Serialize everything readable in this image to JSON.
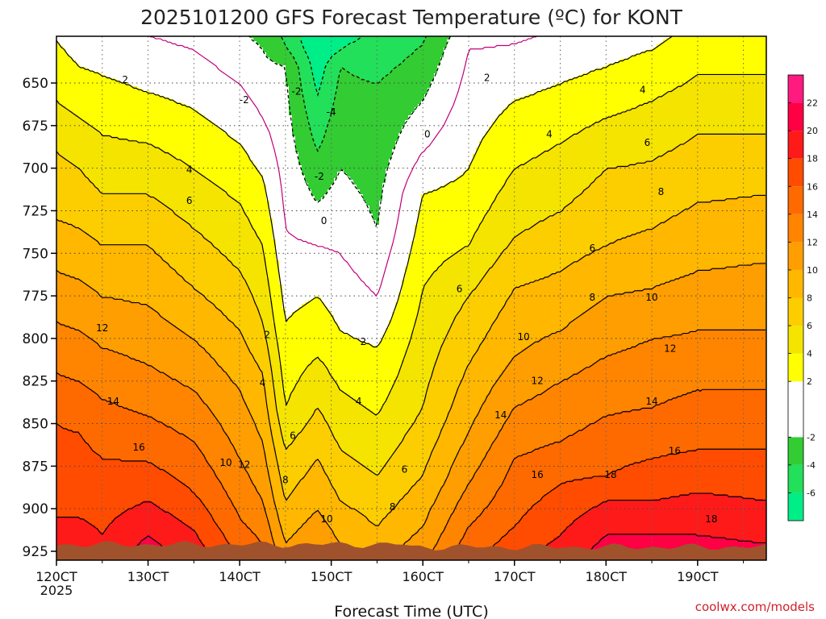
{
  "title": "2025101200 GFS Forecast Temperature (ºC) for KONT",
  "credit": "coolwx.com/models",
  "chart_data": {
    "type": "contour",
    "xlabel": "Forecast Time (UTC)",
    "ylabel": "",
    "x_unit": "day of October 2025",
    "x_range": [
      12,
      19.75
    ],
    "y_range": [
      925,
      625
    ],
    "y_scale": "pressure (hPa), decreasing upward",
    "y_ticks": [
      650,
      675,
      700,
      725,
      750,
      775,
      800,
      825,
      850,
      875,
      900,
      925
    ],
    "x_ticks": [
      {
        "value": 12,
        "label": "120CT",
        "sublabel": "2025"
      },
      {
        "value": 13,
        "label": "130CT"
      },
      {
        "value": 14,
        "label": "140CT"
      },
      {
        "value": 15,
        "label": "150CT"
      },
      {
        "value": 16,
        "label": "160CT"
      },
      {
        "value": 17,
        "label": "170CT"
      },
      {
        "value": 18,
        "label": "180CT"
      },
      {
        "value": 19,
        "label": "190CT"
      }
    ],
    "grid": true,
    "ground_color": "#a0522d",
    "colorbar": {
      "position": "right",
      "min": -8,
      "max": 24,
      "step": 2,
      "labels": [
        "22",
        "20",
        "18",
        "16",
        "14",
        "12",
        "10",
        "8",
        "6",
        "4",
        "2",
        "-2",
        "-4",
        "-6"
      ],
      "colors": [
        {
          "range": [
            -8,
            -6
          ],
          "color": "#00ee88"
        },
        {
          "range": [
            -6,
            -4
          ],
          "color": "#22e05a"
        },
        {
          "range": [
            -4,
            -2
          ],
          "color": "#33cc33"
        },
        {
          "range": [
            -2,
            2
          ],
          "color": "#ffffff"
        },
        {
          "range": [
            2,
            4
          ],
          "color": "#ffff00"
        },
        {
          "range": [
            4,
            6
          ],
          "color": "#f4e400"
        },
        {
          "range": [
            6,
            8
          ],
          "color": "#fcce00"
        },
        {
          "range": [
            8,
            10
          ],
          "color": "#ffb700"
        },
        {
          "range": [
            10,
            12
          ],
          "color": "#ff9e00"
        },
        {
          "range": [
            12,
            14
          ],
          "color": "#ff8500"
        },
        {
          "range": [
            14,
            16
          ],
          "color": "#ff6a00"
        },
        {
          "range": [
            16,
            18
          ],
          "color": "#ff4c00"
        },
        {
          "range": [
            18,
            20
          ],
          "color": "#ff1a1a"
        },
        {
          "range": [
            20,
            22
          ],
          "color": "#ff0044"
        },
        {
          "range": [
            22,
            24
          ],
          "color": "#ff1a80"
        }
      ]
    },
    "profiles": [
      {
        "day": 12.0,
        "t_levels": [
          [
            2,
            625
          ],
          [
            4,
            660
          ],
          [
            6,
            690
          ],
          [
            8,
            730
          ],
          [
            10,
            760
          ],
          [
            12,
            790
          ],
          [
            14,
            820
          ],
          [
            16,
            850
          ],
          [
            18,
            905
          ]
        ]
      },
      {
        "day": 12.25,
        "t_levels": [
          [
            2,
            640
          ],
          [
            4,
            670
          ],
          [
            6,
            700
          ],
          [
            8,
            735
          ],
          [
            10,
            765
          ],
          [
            12,
            795
          ],
          [
            14,
            825
          ],
          [
            16,
            855
          ],
          [
            18,
            905
          ]
        ]
      },
      {
        "day": 12.5,
        "t_levels": [
          [
            2,
            645
          ],
          [
            4,
            680
          ],
          [
            6,
            715
          ],
          [
            8,
            745
          ],
          [
            10,
            775
          ],
          [
            12,
            805
          ],
          [
            14,
            835
          ],
          [
            16,
            870
          ],
          [
            18,
            915
          ]
        ]
      },
      {
        "day": 13.0,
        "t_levels": [
          [
            2,
            655
          ],
          [
            4,
            685
          ],
          [
            6,
            715
          ],
          [
            8,
            745
          ],
          [
            10,
            780
          ],
          [
            12,
            815
          ],
          [
            14,
            845
          ],
          [
            16,
            872
          ],
          [
            18,
            895
          ],
          [
            20,
            915
          ]
        ]
      },
      {
        "day": 13.5,
        "t_levels": [
          [
            0,
            630
          ],
          [
            2,
            665
          ],
          [
            4,
            700
          ],
          [
            6,
            735
          ],
          [
            8,
            770
          ],
          [
            10,
            800
          ],
          [
            12,
            830
          ],
          [
            14,
            860
          ],
          [
            16,
            890
          ],
          [
            18,
            912
          ]
        ]
      },
      {
        "day": 14.0,
        "t_levels": [
          [
            0,
            650
          ],
          [
            2,
            685
          ],
          [
            4,
            720
          ],
          [
            6,
            760
          ],
          [
            8,
            795
          ],
          [
            10,
            830
          ],
          [
            12,
            870
          ],
          [
            14,
            905
          ]
        ]
      },
      {
        "day": 14.25,
        "t_levels": [
          [
            -2,
            630
          ],
          [
            0,
            670
          ],
          [
            2,
            705
          ],
          [
            4,
            745
          ],
          [
            6,
            790
          ],
          [
            8,
            820
          ],
          [
            10,
            860
          ],
          [
            12,
            895
          ]
        ]
      },
      {
        "day": 14.5,
        "t_levels": [
          [
            -4,
            628
          ],
          [
            -2,
            640
          ],
          [
            0,
            735
          ],
          [
            2,
            790
          ],
          [
            4,
            840
          ],
          [
            6,
            865
          ],
          [
            8,
            895
          ],
          [
            10,
            920
          ]
        ]
      },
      {
        "day": 14.85,
        "t_levels": [
          [
            -4,
            690
          ],
          [
            -2,
            720
          ],
          [
            0,
            745
          ],
          [
            2,
            775
          ],
          [
            4,
            810
          ],
          [
            6,
            840
          ],
          [
            8,
            870
          ],
          [
            10,
            900
          ]
        ]
      },
      {
        "day": 15.1,
        "t_levels": [
          [
            -6,
            630
          ],
          [
            -4,
            640
          ],
          [
            -2,
            700
          ],
          [
            0,
            750
          ],
          [
            2,
            795
          ],
          [
            4,
            830
          ],
          [
            6,
            865
          ],
          [
            8,
            895
          ],
          [
            10,
            920
          ]
        ]
      },
      {
        "day": 15.5,
        "t_levels": [
          [
            -4,
            650
          ],
          [
            -2,
            735
          ],
          [
            0,
            775
          ],
          [
            2,
            805
          ],
          [
            4,
            845
          ],
          [
            6,
            880
          ],
          [
            8,
            910
          ]
        ]
      },
      {
        "day": 16.0,
        "t_levels": [
          [
            -2,
            660
          ],
          [
            0,
            690
          ],
          [
            2,
            715
          ],
          [
            4,
            770
          ],
          [
            6,
            840
          ],
          [
            8,
            880
          ],
          [
            10,
            910
          ]
        ]
      },
      {
        "day": 16.5,
        "t_levels": [
          [
            0,
            630
          ],
          [
            2,
            700
          ],
          [
            4,
            745
          ],
          [
            6,
            775
          ],
          [
            8,
            815
          ],
          [
            10,
            855
          ],
          [
            12,
            885
          ]
        ]
      },
      {
        "day": 17.0,
        "t_levels": [
          [
            2,
            660
          ],
          [
            4,
            700
          ],
          [
            6,
            740
          ],
          [
            8,
            770
          ],
          [
            10,
            810
          ],
          [
            12,
            840
          ],
          [
            14,
            870
          ],
          [
            16,
            910
          ]
        ]
      },
      {
        "day": 17.5,
        "t_levels": [
          [
            2,
            650
          ],
          [
            4,
            685
          ],
          [
            6,
            725
          ],
          [
            8,
            760
          ],
          [
            10,
            795
          ],
          [
            12,
            825
          ],
          [
            14,
            860
          ],
          [
            16,
            885
          ],
          [
            18,
            915
          ]
        ]
      },
      {
        "day": 18.0,
        "t_levels": [
          [
            2,
            640
          ],
          [
            4,
            670
          ],
          [
            6,
            700
          ],
          [
            8,
            745
          ],
          [
            10,
            775
          ],
          [
            12,
            810
          ],
          [
            14,
            845
          ],
          [
            16,
            880
          ],
          [
            18,
            895
          ],
          [
            20,
            915
          ]
        ]
      },
      {
        "day": 18.5,
        "t_levels": [
          [
            2,
            630
          ],
          [
            4,
            660
          ],
          [
            6,
            695
          ],
          [
            8,
            735
          ],
          [
            10,
            770
          ],
          [
            12,
            800
          ],
          [
            14,
            840
          ],
          [
            16,
            870
          ],
          [
            18,
            895
          ],
          [
            20,
            915
          ]
        ]
      },
      {
        "day": 19.0,
        "t_levels": [
          [
            4,
            645
          ],
          [
            6,
            680
          ],
          [
            8,
            720
          ],
          [
            10,
            760
          ],
          [
            12,
            795
          ],
          [
            14,
            830
          ],
          [
            16,
            865
          ],
          [
            18,
            890
          ],
          [
            20,
            915
          ]
        ]
      },
      {
        "day": 19.75,
        "t_levels": [
          [
            4,
            645
          ],
          [
            6,
            680
          ],
          [
            8,
            715
          ],
          [
            10,
            755
          ],
          [
            12,
            795
          ],
          [
            14,
            830
          ],
          [
            16,
            865
          ],
          [
            18,
            895
          ]
        ]
      }
    ],
    "contour_labels": [
      {
        "text": "2",
        "day": 12.75,
        "p": 648
      },
      {
        "text": "4",
        "day": 13.45,
        "p": 701
      },
      {
        "text": "6",
        "day": 13.45,
        "p": 719
      },
      {
        "text": "12",
        "day": 12.5,
        "p": 794
      },
      {
        "text": "14",
        "day": 12.62,
        "p": 837
      },
      {
        "text": "16",
        "day": 12.9,
        "p": 864
      },
      {
        "text": "-2",
        "day": 14.05,
        "p": 660
      },
      {
        "text": "-2",
        "day": 14.62,
        "p": 655
      },
      {
        "text": "-4",
        "day": 15.0,
        "p": 667
      },
      {
        "text": "-2",
        "day": 14.87,
        "p": 705
      },
      {
        "text": "0",
        "day": 14.92,
        "p": 731
      },
      {
        "text": "0",
        "day": 16.05,
        "p": 680
      },
      {
        "text": "2",
        "day": 16.7,
        "p": 647
      },
      {
        "text": "2",
        "day": 14.3,
        "p": 798
      },
      {
        "text": "2",
        "day": 15.35,
        "p": 802
      },
      {
        "text": "4",
        "day": 14.25,
        "p": 826
      },
      {
        "text": "4",
        "day": 15.3,
        "p": 837
      },
      {
        "text": "6",
        "day": 14.58,
        "p": 857
      },
      {
        "text": "6",
        "day": 15.8,
        "p": 877
      },
      {
        "text": "6",
        "day": 16.4,
        "p": 771
      },
      {
        "text": "8",
        "day": 14.5,
        "p": 883
      },
      {
        "text": "8",
        "day": 15.67,
        "p": 899
      },
      {
        "text": "10",
        "day": 13.85,
        "p": 873
      },
      {
        "text": "12",
        "day": 14.05,
        "p": 874
      },
      {
        "text": "10",
        "day": 14.95,
        "p": 906
      },
      {
        "text": "4",
        "day": 17.38,
        "p": 680
      },
      {
        "text": "4",
        "day": 18.4,
        "p": 654
      },
      {
        "text": "6",
        "day": 18.45,
        "p": 685
      },
      {
        "text": "8",
        "day": 18.6,
        "p": 714
      },
      {
        "text": "6",
        "day": 17.85,
        "p": 747
      },
      {
        "text": "8",
        "day": 17.85,
        "p": 776
      },
      {
        "text": "10",
        "day": 18.5,
        "p": 776
      },
      {
        "text": "10",
        "day": 17.1,
        "p": 799
      },
      {
        "text": "12",
        "day": 18.7,
        "p": 806
      },
      {
        "text": "12",
        "day": 17.25,
        "p": 825
      },
      {
        "text": "14",
        "day": 18.5,
        "p": 837
      },
      {
        "text": "14",
        "day": 16.85,
        "p": 845
      },
      {
        "text": "16",
        "day": 18.75,
        "p": 866
      },
      {
        "text": "16",
        "day": 17.25,
        "p": 880
      },
      {
        "text": "18",
        "day": 18.05,
        "p": 880
      },
      {
        "text": "18",
        "day": 19.15,
        "p": 906
      }
    ]
  }
}
